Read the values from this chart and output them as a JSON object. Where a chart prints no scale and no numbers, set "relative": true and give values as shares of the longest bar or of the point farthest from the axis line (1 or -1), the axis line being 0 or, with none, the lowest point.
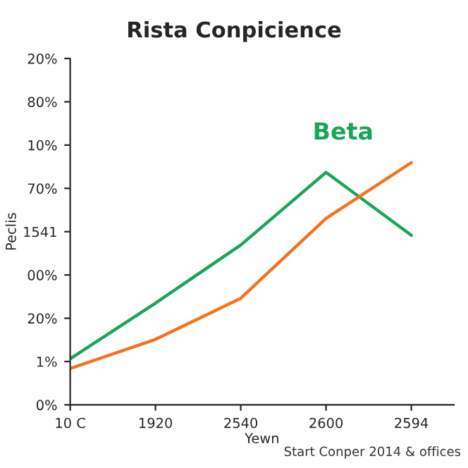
{
  "chart_data": {
    "type": "line",
    "title": "Rista Conpicience",
    "xlabel": "Yewn",
    "ylabel": "Peclis",
    "categories": [
      "10 C",
      "1920",
      "2540",
      "2600",
      "2594"
    ],
    "relative": true,
    "grid": false,
    "legend": false,
    "marker": "none",
    "line_style": "solid",
    "series": [
      {
        "name": "Beta",
        "color": "#1aa65a",
        "values": [
          0.19,
          0.42,
          0.66,
          0.96,
          0.7
        ]
      },
      {
        "color": "#f5731e",
        "values": [
          0.15,
          0.27,
          0.44,
          0.77,
          1.0
        ]
      }
    ],
    "annotations": [
      "20%",
      "80%",
      "10%",
      "70%",
      "1541",
      "00%",
      "20%",
      "1%",
      "0%",
      "Start Conper 2014 & offices"
    ]
  }
}
